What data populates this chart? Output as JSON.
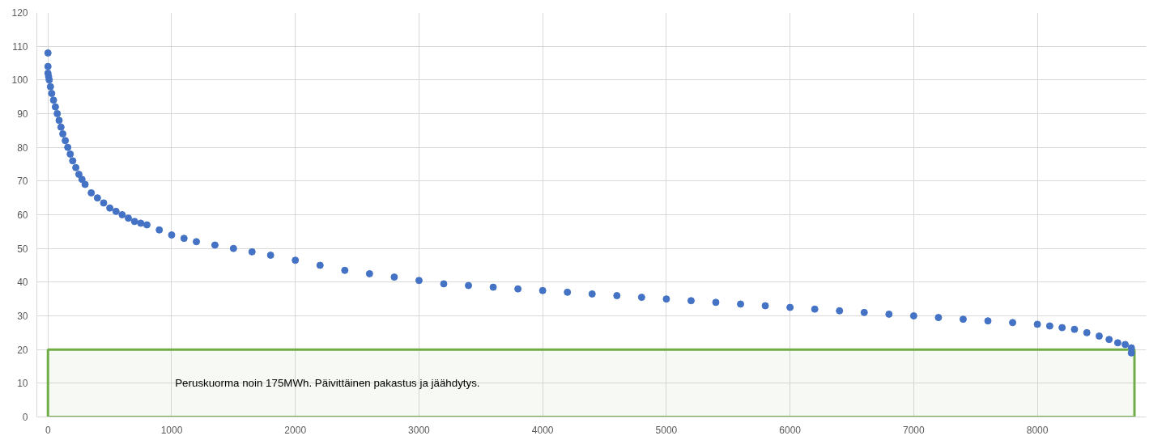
{
  "chart_data": {
    "type": "scatter",
    "marker": "circle",
    "grid": true,
    "xlim": [
      -90,
      8880
    ],
    "ylim": [
      0,
      120
    ],
    "xticks": [
      0,
      1000,
      2000,
      3000,
      4000,
      5000,
      6000,
      7000,
      8000
    ],
    "yticks": [
      0,
      10,
      20,
      30,
      40,
      50,
      60,
      70,
      80,
      90,
      100,
      110,
      120
    ],
    "bands": [
      {
        "axis": "y",
        "from": 0,
        "to": 20,
        "label": "Peruskuorma noin 175MWh. Päivittäinen pakastus ja jäähdytys.",
        "color": "#70ad47"
      }
    ],
    "series": [
      {
        "color": "#4472c4",
        "x": [
          0,
          0,
          0,
          5,
          10,
          20,
          30,
          45,
          60,
          75,
          90,
          105,
          120,
          140,
          160,
          180,
          200,
          225,
          250,
          275,
          300,
          350,
          400,
          450,
          500,
          550,
          600,
          650,
          700,
          750,
          800,
          900,
          1000,
          1100,
          1200,
          1350,
          1500,
          1650,
          1800,
          2000,
          2200,
          2400,
          2600,
          2800,
          3000,
          3200,
          3400,
          3600,
          3800,
          4000,
          4200,
          4400,
          4600,
          4800,
          5000,
          5200,
          5400,
          5600,
          5800,
          6000,
          6200,
          6400,
          6600,
          6800,
          7000,
          7200,
          7400,
          7600,
          7800,
          8000,
          8100,
          8200,
          8300,
          8400,
          8500,
          8580,
          8650,
          8710,
          8760,
          8760
        ],
        "values": [
          108,
          104,
          102,
          101,
          100,
          98,
          96,
          94,
          92,
          90,
          88,
          86,
          84,
          82,
          80,
          78,
          76,
          74,
          72,
          70.5,
          69,
          66.5,
          65,
          63.5,
          62,
          61,
          60,
          59,
          58,
          57.5,
          57,
          55.5,
          54,
          53,
          52,
          51,
          50,
          49,
          48,
          46.5,
          45,
          43.5,
          42.5,
          41.5,
          40.5,
          39.5,
          39,
          38.5,
          38,
          37.5,
          37,
          36.5,
          36,
          35.5,
          35,
          34.5,
          34,
          33.5,
          33,
          32.5,
          32,
          31.5,
          31,
          30.5,
          30,
          29.5,
          29,
          28.5,
          28,
          27.5,
          27,
          26.5,
          26,
          25,
          24,
          23,
          22,
          21.5,
          20.5,
          19
        ]
      }
    ]
  }
}
